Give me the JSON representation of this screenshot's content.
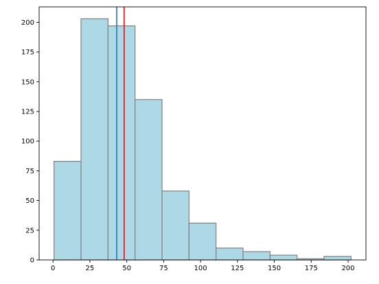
{
  "chart_data": {
    "type": "bar",
    "title": "",
    "xlabel": "",
    "ylabel": "",
    "bin_edges": [
      0.7,
      19.0,
      37.3,
      55.6,
      73.9,
      92.2,
      110.5,
      128.8,
      147.1,
      165.4,
      183.7,
      202.0
    ],
    "counts": [
      83,
      203,
      197,
      135,
      58,
      31,
      10,
      7,
      4,
      1,
      3
    ],
    "xlim": [
      -9.4,
      212.1
    ],
    "ylim": [
      0,
      213
    ],
    "xticks": [
      "0",
      "25",
      "50",
      "75",
      "100",
      "125",
      "150",
      "175",
      "200"
    ],
    "yticks": [
      "0",
      "25",
      "50",
      "75",
      "100",
      "125",
      "150",
      "175",
      "200"
    ],
    "vlines": [
      {
        "x": 43.2,
        "color": "#1f77b4"
      },
      {
        "x": 48.2,
        "color": "#ff0000"
      }
    ],
    "bar_fill": "#add8e6",
    "bar_edge": "#808080",
    "grid": false
  }
}
